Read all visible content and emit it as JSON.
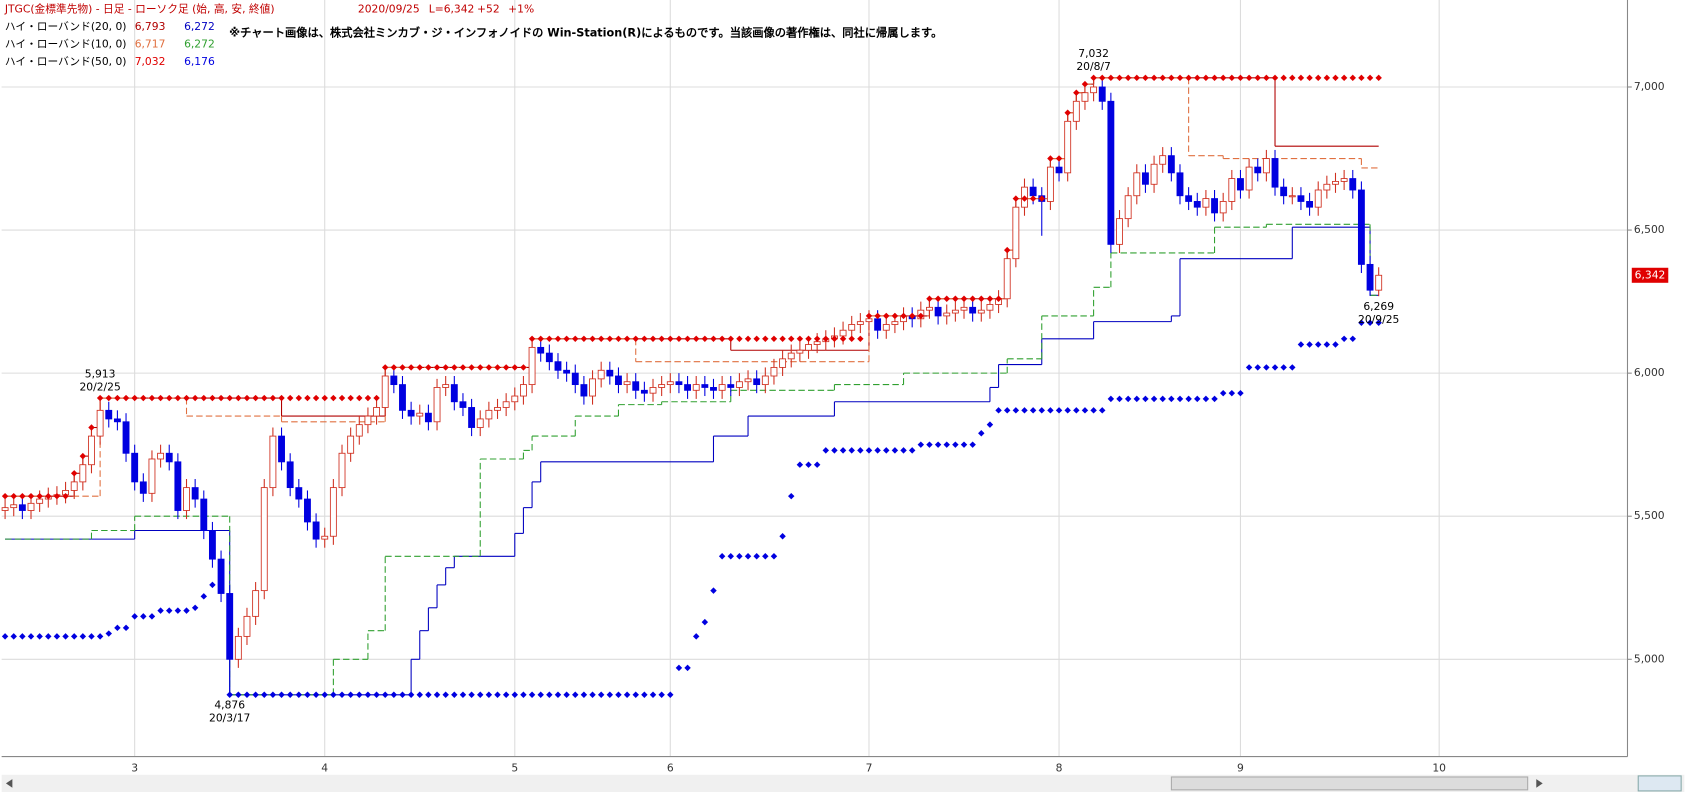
{
  "chart_data": {
    "type": "candlestick",
    "title": "JTGC(金標準先物) - 日足 - ローソク足 (始, 高, 安, 終値)",
    "date": "2020/09/25",
    "last": "L=6,342",
    "change": "+52",
    "change_pct": "+1%",
    "notice": "※チャート画像は、株式会社ミンカブ・ジ・インフォノイドの Win-Station(R)によるものです。当該画像の著作権は、同社に帰属します。",
    "up_color": "#d03020",
    "down_color": "#0000e0",
    "xlim": [
      -0.4,
      187.8
    ],
    "xticks": [
      {
        "value": 15,
        "label": "3"
      },
      {
        "value": 37,
        "label": "4"
      },
      {
        "value": 59,
        "label": "5"
      },
      {
        "value": 77,
        "label": "6"
      },
      {
        "value": 100,
        "label": "7"
      },
      {
        "value": 122,
        "label": "8"
      },
      {
        "value": 143,
        "label": "9"
      },
      {
        "value": 166,
        "label": "10"
      }
    ],
    "ylim": [
      4660,
      7304
    ],
    "yticks": [
      {
        "value": 5000,
        "label": "5,000"
      },
      {
        "value": 5500,
        "label": "5,500"
      },
      {
        "value": 6000,
        "label": "6,000"
      },
      {
        "value": 6500,
        "label": "6,500"
      },
      {
        "value": 7000,
        "label": "7,000"
      }
    ],
    "grid": true,
    "open": [
      5520,
      5530,
      5540,
      5520,
      5545,
      5560,
      5570,
      5575,
      5590,
      5620,
      5680,
      5780,
      5870,
      5840,
      5830,
      5720,
      5620,
      5580,
      5700,
      5720,
      5690,
      5520,
      5600,
      5560,
      5450,
      5350,
      5230,
      5000,
      5080,
      5150,
      5240,
      5600,
      5780,
      5690,
      5600,
      5560,
      5480,
      5420,
      5430,
      5600,
      5720,
      5780,
      5820,
      5850,
      5880,
      5990,
      5960,
      5870,
      5850,
      5860,
      5830,
      5950,
      5960,
      5900,
      5880,
      5810,
      5840,
      5870,
      5880,
      5900,
      5920,
      5960,
      6090,
      6070,
      6040,
      6010,
      6000,
      5960,
      5920,
      5980,
      6010,
      5990,
      5960,
      5970,
      5940,
      5930,
      5950,
      5960,
      5970,
      5960,
      5940,
      5960,
      5950,
      5940,
      5960,
      5950,
      5970,
      5980,
      5960,
      5990,
      6020,
      6050,
      6070,
      6080,
      6100,
      6110,
      6120,
      6130,
      6150,
      6170,
      6180,
      6190,
      6150,
      6170,
      6180,
      6200,
      6190,
      6220,
      6230,
      6200,
      6210,
      6220,
      6230,
      6210,
      6220,
      6240,
      6260,
      6400,
      6580,
      6650,
      6620,
      6600,
      6720,
      6700,
      6880,
      6950,
      6980,
      7000,
      6950,
      6450,
      6540,
      6620,
      6700,
      6660,
      6730,
      6760,
      6700,
      6620,
      6600,
      6580,
      6610,
      6560,
      6600,
      6680,
      6640,
      6720,
      6700,
      6750,
      6650,
      6620,
      6620,
      6600,
      6580,
      6640,
      6660,
      6670,
      6680,
      6640,
      6380,
      6290
    ],
    "high": [
      5560,
      5570,
      5570,
      5575,
      5590,
      5600,
      5605,
      5620,
      5650,
      5710,
      5810,
      5913,
      5900,
      5870,
      5860,
      5750,
      5650,
      5730,
      5750,
      5750,
      5720,
      5630,
      5630,
      5590,
      5480,
      5380,
      5260,
      5110,
      5180,
      5270,
      5630,
      5810,
      5810,
      5720,
      5630,
      5590,
      5510,
      5460,
      5630,
      5750,
      5810,
      5850,
      5880,
      5910,
      6020,
      6020,
      5990,
      5900,
      5890,
      5890,
      5980,
      5990,
      5990,
      5930,
      5910,
      5870,
      5900,
      5910,
      5930,
      5950,
      5990,
      6120,
      6120,
      6100,
      6070,
      6040,
      6030,
      5990,
      6010,
      6040,
      6040,
      6020,
      6000,
      6000,
      5970,
      5980,
      5990,
      6000,
      6000,
      5990,
      5990,
      5990,
      5980,
      5990,
      5990,
      6000,
      6010,
      6010,
      6020,
      6050,
      6080,
      6100,
      6110,
      6130,
      6140,
      6150,
      6160,
      6180,
      6200,
      6210,
      6220,
      6220,
      6200,
      6210,
      6230,
      6230,
      6250,
      6260,
      6260,
      6240,
      6250,
      6260,
      6260,
      6250,
      6270,
      6290,
      6430,
      6610,
      6680,
      6680,
      6650,
      6750,
      6750,
      6910,
      6980,
      7010,
      7032,
      7030,
      6980,
      6570,
      6650,
      6730,
      6730,
      6760,
      6790,
      6790,
      6730,
      6650,
      6630,
      6640,
      6640,
      6630,
      6710,
      6710,
      6750,
      6750,
      6780,
      6780,
      6680,
      6650,
      6650,
      6630,
      6670,
      6690,
      6700,
      6710,
      6710,
      6670,
      6410,
      6370
    ],
    "low": [
      5490,
      5500,
      5490,
      5490,
      5515,
      5530,
      5540,
      5545,
      5560,
      5590,
      5650,
      5750,
      5810,
      5800,
      5690,
      5590,
      5550,
      5550,
      5670,
      5660,
      5490,
      5490,
      5530,
      5420,
      5320,
      5200,
      4876,
      4970,
      5050,
      5120,
      5210,
      5570,
      5660,
      5570,
      5530,
      5450,
      5390,
      5390,
      5400,
      5570,
      5690,
      5750,
      5790,
      5820,
      5850,
      5930,
      5840,
      5820,
      5820,
      5800,
      5800,
      5920,
      5870,
      5850,
      5780,
      5780,
      5810,
      5840,
      5850,
      5870,
      5890,
      5930,
      6040,
      6010,
      5980,
      5970,
      5930,
      5890,
      5890,
      5950,
      5960,
      5930,
      5930,
      5910,
      5900,
      5900,
      5920,
      5930,
      5930,
      5910,
      5910,
      5920,
      5910,
      5910,
      5920,
      5920,
      5940,
      5930,
      5930,
      5960,
      5990,
      6020,
      6040,
      6050,
      6070,
      6080,
      6090,
      6100,
      6120,
      6140,
      6150,
      6120,
      6120,
      6140,
      6150,
      6160,
      6160,
      6190,
      6170,
      6170,
      6180,
      6190,
      6180,
      6180,
      6190,
      6210,
      6230,
      6370,
      6550,
      6590,
      6480,
      6570,
      6670,
      6670,
      6850,
      6920,
      6950,
      6920,
      6420,
      6420,
      6510,
      6590,
      6630,
      6630,
      6700,
      6670,
      6590,
      6570,
      6550,
      6550,
      6530,
      6530,
      6570,
      6610,
      6610,
      6670,
      6670,
      6620,
      6590,
      6590,
      6570,
      6550,
      6550,
      6610,
      6630,
      6640,
      6610,
      6350,
      6270,
      6269
    ],
    "close": [
      5530,
      5540,
      5520,
      5545,
      5560,
      5570,
      5575,
      5590,
      5620,
      5680,
      5780,
      5870,
      5840,
      5830,
      5720,
      5620,
      5580,
      5700,
      5720,
      5690,
      5520,
      5600,
      5560,
      5450,
      5350,
      5230,
      5000,
      5080,
      5150,
      5240,
      5600,
      5780,
      5690,
      5600,
      5560,
      5480,
      5420,
      5430,
      5600,
      5720,
      5780,
      5820,
      5850,
      5880,
      5990,
      5960,
      5870,
      5850,
      5860,
      5830,
      5950,
      5960,
      5900,
      5880,
      5810,
      5840,
      5870,
      5880,
      5900,
      5920,
      5960,
      6090,
      6070,
      6040,
      6010,
      6000,
      5960,
      5920,
      5980,
      6010,
      5990,
      5960,
      5970,
      5940,
      5930,
      5950,
      5960,
      5970,
      5960,
      5940,
      5960,
      5950,
      5940,
      5960,
      5950,
      5970,
      5980,
      5960,
      5990,
      6020,
      6050,
      6070,
      6080,
      6100,
      6110,
      6120,
      6130,
      6150,
      6170,
      6180,
      6190,
      6150,
      6170,
      6180,
      6200,
      6190,
      6220,
      6230,
      6200,
      6210,
      6220,
      6230,
      6210,
      6220,
      6240,
      6260,
      6400,
      6580,
      6650,
      6620,
      6600,
      6720,
      6700,
      6880,
      6950,
      6980,
      7000,
      6950,
      6450,
      6540,
      6620,
      6700,
      6660,
      6730,
      6760,
      6700,
      6620,
      6600,
      6580,
      6610,
      6560,
      6600,
      6680,
      6640,
      6720,
      6700,
      6750,
      6650,
      6620,
      6620,
      6600,
      6580,
      6640,
      6660,
      6670,
      6680,
      6640,
      6380,
      6290,
      6342
    ],
    "bands": [
      {
        "name": "ハイ・ローバンド(20, 0)",
        "style": "solid",
        "upper": {
          "color": "#b00000",
          "x": [
            0,
            8,
            9,
            10,
            11,
            32,
            44,
            61,
            84,
            100,
            107,
            116,
            117,
            121,
            123,
            124,
            125,
            126,
            147
          ],
          "values": [
            5570,
            5650,
            5710,
            5810,
            5913,
            5850,
            6020,
            6120,
            6080,
            6200,
            6260,
            6430,
            6610,
            6750,
            6910,
            6980,
            7010,
            7032,
            6793
          ],
          "value_label": "6,793"
        },
        "lower": {
          "color": "#0000c0",
          "x": [
            0,
            15,
            26,
            47,
            48,
            49,
            50,
            51,
            52,
            59,
            60,
            61,
            62,
            82,
            86,
            96,
            114,
            115,
            120,
            126,
            135,
            136,
            149,
            158
          ],
          "values": [
            5420,
            5450,
            4876,
            5000,
            5100,
            5180,
            5260,
            5320,
            5360,
            5440,
            5530,
            5620,
            5690,
            5780,
            5850,
            5900,
            5950,
            6030,
            6120,
            6180,
            6200,
            6400,
            6510,
            6272
          ],
          "value_label": "6,272"
        }
      },
      {
        "name": "ハイ・ローバンド(10, 0)",
        "style": "dashed",
        "upper": {
          "color": "#e07040",
          "x": [
            0,
            11,
            21,
            32,
            44,
            61,
            73,
            100,
            107,
            116,
            117,
            121,
            123,
            124,
            125,
            126,
            137,
            141,
            157
          ],
          "values": [
            5570,
            5913,
            5850,
            5830,
            6020,
            6120,
            6040,
            6200,
            6260,
            6430,
            6610,
            6750,
            6910,
            6980,
            7010,
            7032,
            6760,
            6750,
            6717
          ],
          "value_label": "6,717"
        },
        "lower": {
          "color": "#30a030",
          "x": [
            0,
            10,
            15,
            26,
            38,
            42,
            44,
            55,
            60,
            61,
            66,
            71,
            76,
            84,
            96,
            104,
            116,
            120,
            126,
            128,
            140,
            146,
            158
          ],
          "values": [
            5420,
            5450,
            5500,
            4876,
            5000,
            5100,
            5360,
            5700,
            5730,
            5780,
            5850,
            5890,
            5900,
            5940,
            5960,
            6000,
            6050,
            6200,
            6300,
            6420,
            6510,
            6520,
            6272
          ],
          "value_label": "6,272"
        }
      },
      {
        "name": "ハイ・ローバンド(50, 0)",
        "style": "diamond",
        "upper": {
          "color": "#e00000",
          "x": [
            0,
            8,
            9,
            10,
            11,
            44,
            61,
            100,
            107,
            116,
            117,
            121,
            123,
            124,
            125,
            126
          ],
          "values": [
            5570,
            5650,
            5710,
            5810,
            5913,
            6020,
            6120,
            6200,
            6260,
            6430,
            6610,
            6750,
            6910,
            6980,
            7010,
            7032
          ],
          "value_label": "7,032"
        },
        "lower": {
          "color": "#0000e0",
          "x": [
            0,
            12,
            13,
            15,
            18,
            22,
            23,
            24,
            26,
            78,
            80,
            81,
            82,
            83,
            90,
            91,
            92,
            95,
            106,
            113,
            114,
            115,
            128,
            141,
            144,
            150,
            155,
            157
          ],
          "values": [
            5080,
            5090,
            5110,
            5150,
            5170,
            5180,
            5220,
            5260,
            4876,
            4970,
            5080,
            5130,
            5240,
            5360,
            5430,
            5570,
            5680,
            5730,
            5750,
            5790,
            5820,
            5870,
            5910,
            5930,
            6020,
            6100,
            6120,
            6176
          ],
          "value_label": "6,176"
        }
      }
    ],
    "annotations": [
      {
        "x": 11,
        "value": 5913,
        "value_label": "5,913",
        "date": "20/2/25",
        "position": "above"
      },
      {
        "x": 26,
        "value": 4876,
        "value_label": "4,876",
        "date": "20/3/17",
        "position": "below"
      },
      {
        "x": 126,
        "value": 7032,
        "value_label": "7,032",
        "date": "20/8/7",
        "position": "above"
      },
      {
        "x": 159,
        "value": 6269,
        "value_label": "6,269",
        "date": "20/9/25",
        "position": "below"
      }
    ],
    "last_price": {
      "value": 6342,
      "label": "6,342",
      "color": "#e00000"
    }
  }
}
